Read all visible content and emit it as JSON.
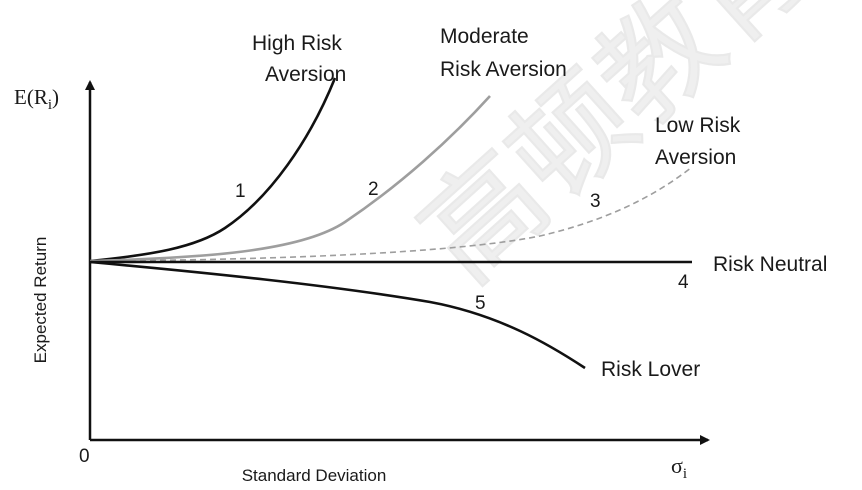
{
  "axes": {
    "y_axis_symbol": "E(R",
    "y_axis_subscript": "i",
    "y_axis_close": ")",
    "y_axis_label": "Expected Return",
    "x_axis_label": "Standard Deviation",
    "x_axis_symbol": "σ",
    "x_axis_subscript": "i",
    "origin_label": "0"
  },
  "curves": [
    {
      "id": "high-risk-aversion",
      "number": "1",
      "label_lines": [
        "High Risk",
        "Aversion"
      ],
      "color": "#111111",
      "style": "solid"
    },
    {
      "id": "moderate-risk-aversion",
      "number": "2",
      "label_lines": [
        "Moderate",
        "Risk Aversion"
      ],
      "color": "#9e9e9e",
      "style": "solid"
    },
    {
      "id": "low-risk-aversion",
      "number": "3",
      "label_lines": [
        "Low Risk",
        "Aversion"
      ],
      "color": "#9e9e9e",
      "style": "dashed"
    },
    {
      "id": "risk-neutral",
      "number": "4",
      "label_lines": [
        "Risk Neutral"
      ],
      "color": "#111111",
      "style": "solid"
    },
    {
      "id": "risk-lover",
      "number": "5",
      "label_lines": [
        "Risk Lover"
      ],
      "color": "#111111",
      "style": "solid"
    }
  ],
  "watermark": {
    "text": "高顿教育"
  }
}
